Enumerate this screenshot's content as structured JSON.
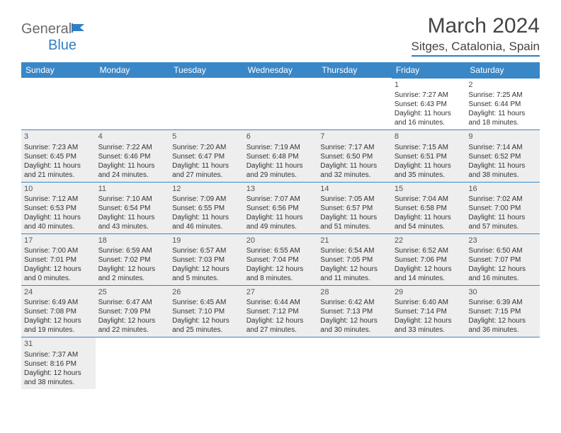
{
  "logo": {
    "word1": "General",
    "word2": "Blue"
  },
  "title": "March 2024",
  "location": "Sitges, Catalonia, Spain",
  "colors": {
    "accent": "#3a87c8",
    "headerText": "#ffffff",
    "shaded": "#eeeeee",
    "text": "#333333",
    "titleText": "#444444",
    "logoGray": "#6b6b6b"
  },
  "dayNames": [
    "Sunday",
    "Monday",
    "Tuesday",
    "Wednesday",
    "Thursday",
    "Friday",
    "Saturday"
  ],
  "weeks": [
    [
      {
        "blank": true
      },
      {
        "blank": true
      },
      {
        "blank": true
      },
      {
        "blank": true
      },
      {
        "blank": true
      },
      {
        "n": "1",
        "sr": "7:27 AM",
        "ss": "6:43 PM",
        "dl": "11 hours and 16 minutes."
      },
      {
        "n": "2",
        "sr": "7:25 AM",
        "ss": "6:44 PM",
        "dl": "11 hours and 18 minutes."
      }
    ],
    [
      {
        "n": "3",
        "sr": "7:23 AM",
        "ss": "6:45 PM",
        "dl": "11 hours and 21 minutes.",
        "sh": true
      },
      {
        "n": "4",
        "sr": "7:22 AM",
        "ss": "6:46 PM",
        "dl": "11 hours and 24 minutes.",
        "sh": true
      },
      {
        "n": "5",
        "sr": "7:20 AM",
        "ss": "6:47 PM",
        "dl": "11 hours and 27 minutes.",
        "sh": true
      },
      {
        "n": "6",
        "sr": "7:19 AM",
        "ss": "6:48 PM",
        "dl": "11 hours and 29 minutes.",
        "sh": true
      },
      {
        "n": "7",
        "sr": "7:17 AM",
        "ss": "6:50 PM",
        "dl": "11 hours and 32 minutes.",
        "sh": true
      },
      {
        "n": "8",
        "sr": "7:15 AM",
        "ss": "6:51 PM",
        "dl": "11 hours and 35 minutes.",
        "sh": true
      },
      {
        "n": "9",
        "sr": "7:14 AM",
        "ss": "6:52 PM",
        "dl": "11 hours and 38 minutes.",
        "sh": true
      }
    ],
    [
      {
        "n": "10",
        "sr": "7:12 AM",
        "ss": "6:53 PM",
        "dl": "11 hours and 40 minutes.",
        "sh": true
      },
      {
        "n": "11",
        "sr": "7:10 AM",
        "ss": "6:54 PM",
        "dl": "11 hours and 43 minutes.",
        "sh": true
      },
      {
        "n": "12",
        "sr": "7:09 AM",
        "ss": "6:55 PM",
        "dl": "11 hours and 46 minutes.",
        "sh": true
      },
      {
        "n": "13",
        "sr": "7:07 AM",
        "ss": "6:56 PM",
        "dl": "11 hours and 49 minutes.",
        "sh": true
      },
      {
        "n": "14",
        "sr": "7:05 AM",
        "ss": "6:57 PM",
        "dl": "11 hours and 51 minutes.",
        "sh": true
      },
      {
        "n": "15",
        "sr": "7:04 AM",
        "ss": "6:58 PM",
        "dl": "11 hours and 54 minutes.",
        "sh": true
      },
      {
        "n": "16",
        "sr": "7:02 AM",
        "ss": "7:00 PM",
        "dl": "11 hours and 57 minutes.",
        "sh": true
      }
    ],
    [
      {
        "n": "17",
        "sr": "7:00 AM",
        "ss": "7:01 PM",
        "dl": "12 hours and 0 minutes.",
        "sh": true
      },
      {
        "n": "18",
        "sr": "6:59 AM",
        "ss": "7:02 PM",
        "dl": "12 hours and 2 minutes.",
        "sh": true
      },
      {
        "n": "19",
        "sr": "6:57 AM",
        "ss": "7:03 PM",
        "dl": "12 hours and 5 minutes.",
        "sh": true
      },
      {
        "n": "20",
        "sr": "6:55 AM",
        "ss": "7:04 PM",
        "dl": "12 hours and 8 minutes.",
        "sh": true
      },
      {
        "n": "21",
        "sr": "6:54 AM",
        "ss": "7:05 PM",
        "dl": "12 hours and 11 minutes.",
        "sh": true
      },
      {
        "n": "22",
        "sr": "6:52 AM",
        "ss": "7:06 PM",
        "dl": "12 hours and 14 minutes.",
        "sh": true
      },
      {
        "n": "23",
        "sr": "6:50 AM",
        "ss": "7:07 PM",
        "dl": "12 hours and 16 minutes.",
        "sh": true
      }
    ],
    [
      {
        "n": "24",
        "sr": "6:49 AM",
        "ss": "7:08 PM",
        "dl": "12 hours and 19 minutes.",
        "sh": true
      },
      {
        "n": "25",
        "sr": "6:47 AM",
        "ss": "7:09 PM",
        "dl": "12 hours and 22 minutes.",
        "sh": true
      },
      {
        "n": "26",
        "sr": "6:45 AM",
        "ss": "7:10 PM",
        "dl": "12 hours and 25 minutes.",
        "sh": true
      },
      {
        "n": "27",
        "sr": "6:44 AM",
        "ss": "7:12 PM",
        "dl": "12 hours and 27 minutes.",
        "sh": true
      },
      {
        "n": "28",
        "sr": "6:42 AM",
        "ss": "7:13 PM",
        "dl": "12 hours and 30 minutes.",
        "sh": true
      },
      {
        "n": "29",
        "sr": "6:40 AM",
        "ss": "7:14 PM",
        "dl": "12 hours and 33 minutes.",
        "sh": true
      },
      {
        "n": "30",
        "sr": "6:39 AM",
        "ss": "7:15 PM",
        "dl": "12 hours and 36 minutes.",
        "sh": true
      }
    ],
    [
      {
        "n": "31",
        "sr": "7:37 AM",
        "ss": "8:16 PM",
        "dl": "12 hours and 38 minutes.",
        "sh": true
      },
      {
        "blank": true
      },
      {
        "blank": true
      },
      {
        "blank": true
      },
      {
        "blank": true
      },
      {
        "blank": true
      },
      {
        "blank": true
      }
    ]
  ],
  "labels": {
    "sunrise": "Sunrise:",
    "sunset": "Sunset:",
    "daylight": "Daylight:"
  }
}
